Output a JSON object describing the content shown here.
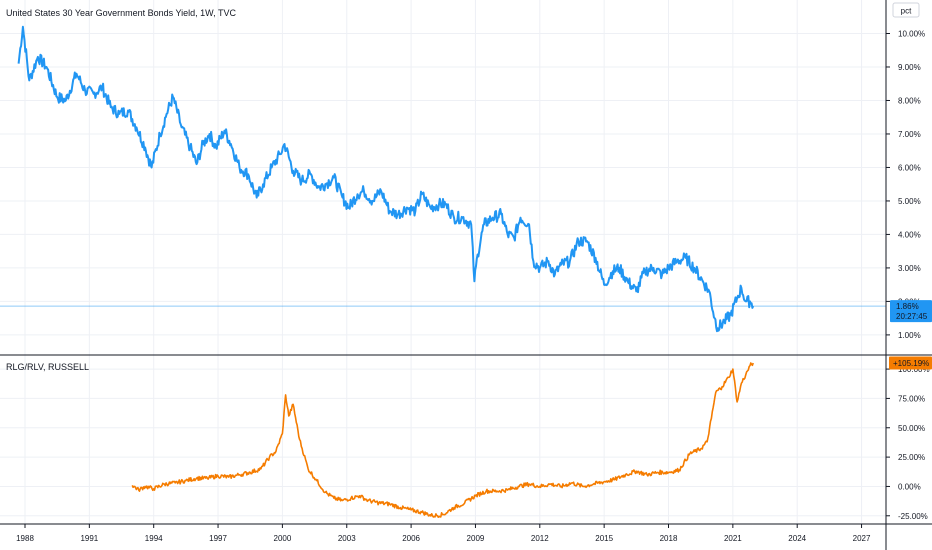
{
  "top_panel": {
    "title": "United States 30 Year Government Bonds Yield, 1W, TVC",
    "unit_label": "pct",
    "last_value_label": "1.86%",
    "countdown_label": "20:27:45",
    "color": "#2196f3"
  },
  "bottom_panel": {
    "title": "RLG/RLV, RUSSELL",
    "last_value_label": "+105.19%",
    "color": "#f57c00"
  },
  "x_axis": {
    "ticks": [
      "1988",
      "1991",
      "1994",
      "1997",
      "2000",
      "2003",
      "2006",
      "2009",
      "2012",
      "2015",
      "2018",
      "2021",
      "2024",
      "2027"
    ]
  },
  "chart_data": [
    {
      "type": "line",
      "title": "United States 30 Year Government Bonds Yield, 1W, TVC",
      "ylim": [
        0.4,
        11.0
      ],
      "y_ticks": [
        "1.00%",
        "2.00%",
        "3.00%",
        "4.00%",
        "5.00%",
        "6.00%",
        "7.00%",
        "8.00%",
        "9.00%",
        "10.00%"
      ],
      "y_tick_values": [
        1,
        2,
        3,
        4,
        5,
        6,
        7,
        8,
        9,
        10
      ],
      "series": [
        {
          "name": "United States 30 Year Government Bonds Yield",
          "x": [
            1987.7,
            1987.9,
            1988.2,
            1988.6,
            1989.0,
            1989.5,
            1989.9,
            1990.4,
            1990.8,
            1991.2,
            1991.6,
            1992.0,
            1992.4,
            1992.8,
            1993.2,
            1993.6,
            1993.9,
            1994.3,
            1994.6,
            1994.9,
            1995.3,
            1995.7,
            1996.0,
            1996.3,
            1996.6,
            1996.9,
            1997.3,
            1997.6,
            1998.0,
            1998.4,
            1998.8,
            1999.1,
            1999.5,
            1999.9,
            2000.1,
            2000.5,
            2000.9,
            2001.3,
            2001.7,
            2002.0,
            2002.4,
            2002.8,
            2003.1,
            2003.5,
            2003.8,
            2004.2,
            2004.6,
            2005.0,
            2005.4,
            2005.8,
            2006.2,
            2006.5,
            2006.9,
            2007.3,
            2007.6,
            2008.0,
            2008.4,
            2008.8,
            2008.95,
            2009.1,
            2009.4,
            2009.8,
            2010.2,
            2010.5,
            2010.8,
            2011.1,
            2011.5,
            2011.7,
            2012.0,
            2012.4,
            2012.7,
            2013.0,
            2013.4,
            2013.8,
            2014.2,
            2014.6,
            2015.0,
            2015.4,
            2015.7,
            2016.1,
            2016.5,
            2016.9,
            2017.3,
            2017.7,
            2018.0,
            2018.4,
            2018.8,
            2019.2,
            2019.6,
            2019.9,
            2020.15,
            2020.3,
            2020.6,
            2020.9,
            2021.2,
            2021.4,
            2021.6,
            2021.8,
            2021.95
          ],
          "values": [
            9.1,
            10.2,
            8.6,
            9.3,
            9.0,
            8.1,
            8.0,
            8.8,
            8.3,
            8.2,
            8.4,
            7.8,
            7.6,
            7.7,
            7.2,
            6.6,
            6.0,
            7.0,
            7.6,
            8.1,
            7.2,
            6.6,
            6.1,
            6.7,
            7.0,
            6.6,
            7.1,
            6.7,
            6.0,
            5.8,
            5.1,
            5.5,
            6.0,
            6.4,
            6.7,
            5.9,
            5.6,
            5.8,
            5.4,
            5.5,
            5.7,
            5.1,
            4.8,
            5.2,
            5.3,
            5.0,
            5.3,
            4.7,
            4.6,
            4.8,
            4.7,
            5.2,
            4.8,
            4.9,
            4.9,
            4.5,
            4.5,
            4.3,
            2.6,
            3.4,
            4.3,
            4.5,
            4.6,
            4.0,
            3.9,
            4.5,
            4.3,
            3.2,
            3.0,
            3.2,
            2.8,
            3.1,
            3.2,
            3.8,
            3.8,
            3.3,
            2.5,
            2.9,
            3.0,
            2.6,
            2.3,
            2.9,
            3.0,
            2.8,
            3.0,
            3.2,
            3.3,
            3.0,
            2.6,
            2.3,
            1.5,
            1.2,
            1.4,
            1.6,
            2.1,
            2.4,
            2.0,
            2.0,
            1.86
          ]
        }
      ]
    },
    {
      "type": "line",
      "title": "RLG/RLV, RUSSELL",
      "ylim": [
        -32,
        112
      ],
      "y_ticks": [
        "-25.00%",
        "0.00%",
        "25.00%",
        "50.00%",
        "75.00%",
        "100.00%"
      ],
      "y_tick_values": [
        -25,
        0,
        25,
        50,
        75,
        100
      ],
      "series": [
        {
          "name": "RLG/RLV",
          "x": [
            1993.0,
            1993.3,
            1993.6,
            1994.0,
            1994.5,
            1995.0,
            1995.5,
            1996.0,
            1996.5,
            1997.0,
            1997.5,
            1998.0,
            1998.5,
            1999.0,
            1999.4,
            1999.7,
            2000.0,
            2000.15,
            2000.3,
            2000.5,
            2000.8,
            2001.2,
            2001.6,
            2002.0,
            2002.4,
            2002.8,
            2003.2,
            2003.6,
            2004.0,
            2004.5,
            2005.0,
            2005.5,
            2006.0,
            2006.5,
            2007.0,
            2007.5,
            2008.0,
            2008.5,
            2009.0,
            2009.5,
            2010.0,
            2010.5,
            2011.0,
            2011.5,
            2012.0,
            2012.5,
            2013.0,
            2013.5,
            2014.0,
            2014.5,
            2015.0,
            2015.5,
            2016.0,
            2016.5,
            2017.0,
            2017.5,
            2018.0,
            2018.5,
            2019.0,
            2019.5,
            2019.8,
            2020.0,
            2020.2,
            2020.5,
            2020.8,
            2021.0,
            2021.2,
            2021.4,
            2021.6,
            2021.8,
            2021.95
          ],
          "values": [
            1,
            -3,
            0,
            -2,
            2,
            3,
            5,
            7,
            7,
            9,
            8,
            10,
            12,
            15,
            25,
            30,
            45,
            78,
            60,
            70,
            40,
            15,
            5,
            -5,
            -10,
            -12,
            -10,
            -8,
            -12,
            -14,
            -15,
            -18,
            -20,
            -22,
            -25,
            -24,
            -18,
            -14,
            -8,
            -4,
            -4,
            -3,
            0,
            2,
            0,
            2,
            0,
            3,
            0,
            2,
            4,
            6,
            10,
            13,
            10,
            12,
            12,
            14,
            28,
            32,
            38,
            58,
            80,
            85,
            93,
            100,
            72,
            88,
            95,
            103,
            105.19
          ]
        }
      ]
    }
  ]
}
